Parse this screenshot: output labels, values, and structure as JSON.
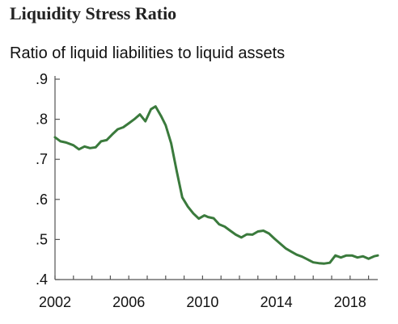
{
  "chart_data": {
    "type": "line",
    "title": "Liquidity Stress Ratio",
    "subtitle": "Ratio of liquid liabilities to liquid assets",
    "xlabel": "",
    "ylabel": "",
    "xlim": [
      2002.0,
      2019.5
    ],
    "ylim": [
      0.4,
      0.9
    ],
    "y_ticks": [
      0.4,
      0.5,
      0.6,
      0.7,
      0.8,
      0.9
    ],
    "y_tick_labels": [
      ".4",
      ".5",
      ".6",
      ".7",
      ".8",
      ".9"
    ],
    "x_ticks": [
      2002,
      2006,
      2010,
      2014,
      2018
    ],
    "x_tick_labels": [
      "2002",
      "2006",
      "2010",
      "2014",
      "2018"
    ],
    "grid": false,
    "legend": "none",
    "series_color": "#3a7a3c",
    "series": [
      {
        "x": [
          2002.0,
          2002.3,
          2002.6,
          2003.0,
          2003.3,
          2003.6,
          2003.9,
          2004.2,
          2004.5,
          2004.8,
          2005.1,
          2005.4,
          2005.7,
          2006.0,
          2006.3,
          2006.6,
          2006.9,
          2007.2,
          2007.45,
          2007.75,
          2008.0,
          2008.3,
          2008.6,
          2008.9,
          2009.2,
          2009.5,
          2009.8,
          2010.1,
          2010.3,
          2010.6,
          2010.9,
          2011.2,
          2011.5,
          2011.8,
          2012.1,
          2012.4,
          2012.7,
          2013.0,
          2013.3,
          2013.6,
          2013.9,
          2014.2,
          2014.5,
          2014.8,
          2015.1,
          2015.4,
          2015.7,
          2016.0,
          2016.3,
          2016.6,
          2016.9,
          2017.2,
          2017.5,
          2017.8,
          2018.1,
          2018.4,
          2018.7,
          2019.0,
          2019.3,
          2019.5
        ],
        "y": [
          0.755,
          0.745,
          0.742,
          0.735,
          0.725,
          0.732,
          0.728,
          0.73,
          0.745,
          0.748,
          0.762,
          0.775,
          0.78,
          0.79,
          0.8,
          0.812,
          0.795,
          0.825,
          0.832,
          0.808,
          0.785,
          0.74,
          0.67,
          0.605,
          0.582,
          0.565,
          0.552,
          0.56,
          0.556,
          0.553,
          0.538,
          0.532,
          0.522,
          0.512,
          0.505,
          0.513,
          0.512,
          0.52,
          0.522,
          0.515,
          0.502,
          0.49,
          0.478,
          0.47,
          0.462,
          0.457,
          0.45,
          0.443,
          0.441,
          0.44,
          0.442,
          0.46,
          0.455,
          0.46,
          0.46,
          0.455,
          0.458,
          0.452,
          0.458,
          0.46
        ]
      }
    ]
  }
}
